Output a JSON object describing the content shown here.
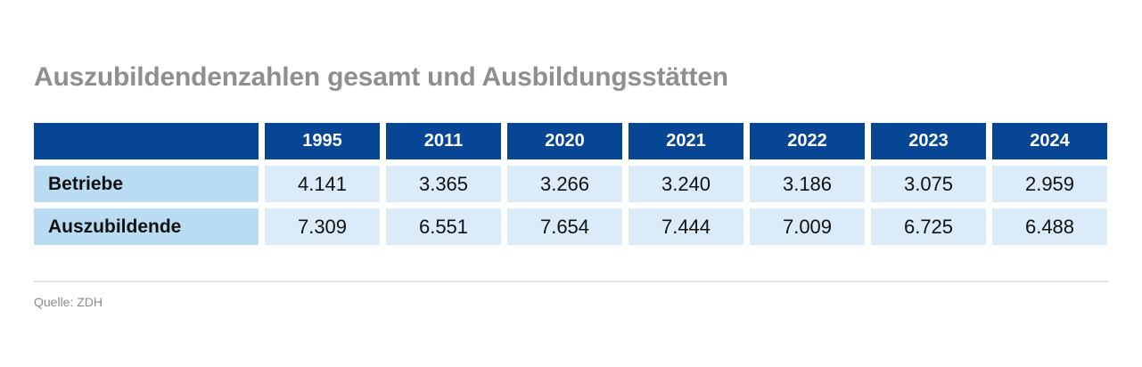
{
  "title": "Auszubildendenzahlen gesamt und Ausbildungsstätten",
  "source": "Quelle: ZDH",
  "colors": {
    "header": "#064694",
    "row_label": "#b9dcf3",
    "cell": "#dbecf8",
    "title": "#8f8f8f"
  },
  "chart_data": {
    "type": "table",
    "title": "Auszubildendenzahlen gesamt und Ausbildungsstätten",
    "columns": [
      "",
      "1995",
      "2011",
      "2020",
      "2021",
      "2022",
      "2023",
      "2024"
    ],
    "rows": [
      {
        "label": "Betriebe",
        "values": [
          "4.141",
          "3.365",
          "3.266",
          "3.240",
          "3.186",
          "3.075",
          "2.959"
        ]
      },
      {
        "label": "Auszubildende",
        "values": [
          "7.309",
          "6.551",
          "7.654",
          "7.444",
          "7.009",
          "6.725",
          "6.488"
        ]
      }
    ],
    "source": "Quelle: ZDH"
  }
}
